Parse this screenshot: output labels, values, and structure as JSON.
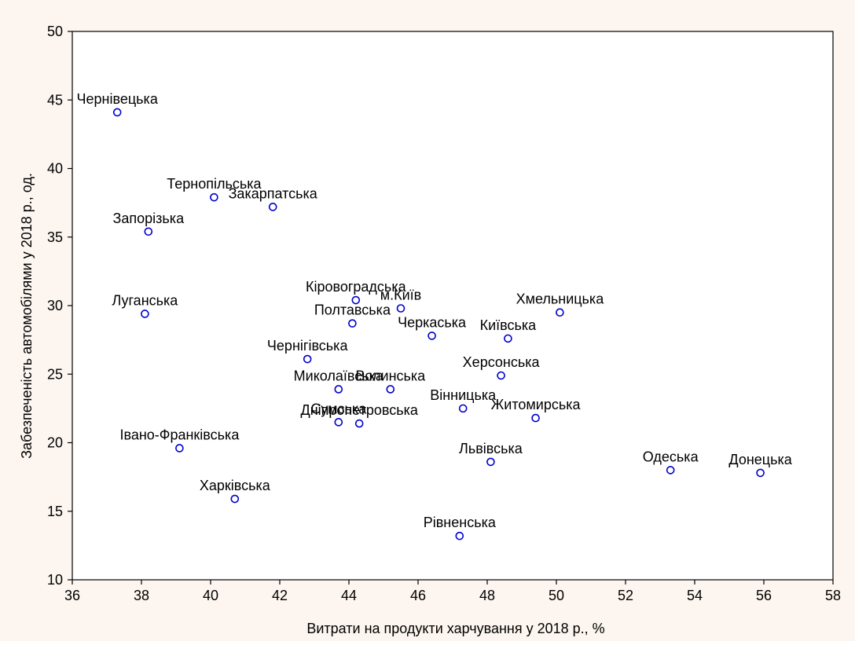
{
  "chart_data": {
    "type": "scatter",
    "title": "",
    "xlabel": "Витрати на продукти харчування у 2018 р., %",
    "ylabel": "Забезпеченість автомобілями у 2018 р., од.",
    "xlim": [
      36,
      58
    ],
    "ylim": [
      10,
      50
    ],
    "xticks": [
      36,
      38,
      40,
      42,
      44,
      46,
      48,
      50,
      52,
      54,
      56,
      58
    ],
    "yticks": [
      10,
      15,
      20,
      25,
      30,
      35,
      40,
      45,
      50
    ],
    "grid": false,
    "marker_color": "#0000cc",
    "points": [
      {
        "label": "Чернівецька",
        "x": 37.3,
        "y": 44.1
      },
      {
        "label": "Тернопільська",
        "x": 40.1,
        "y": 37.9
      },
      {
        "label": "Закарпатська",
        "x": 41.8,
        "y": 37.2
      },
      {
        "label": "Запорізька",
        "x": 38.2,
        "y": 35.4
      },
      {
        "label": "Луганська",
        "x": 38.1,
        "y": 29.4
      },
      {
        "label": "Кіровоградська",
        "x": 44.2,
        "y": 30.4
      },
      {
        "label": "м.Київ",
        "x": 45.5,
        "y": 29.8
      },
      {
        "label": "Полтавська",
        "x": 44.1,
        "y": 28.7
      },
      {
        "label": "Хмельницька",
        "x": 50.1,
        "y": 29.5
      },
      {
        "label": "Черкаська",
        "x": 46.4,
        "y": 27.8
      },
      {
        "label": "Київська",
        "x": 48.6,
        "y": 27.6
      },
      {
        "label": "Чернігівська",
        "x": 42.8,
        "y": 26.1
      },
      {
        "label": "Херсонська",
        "x": 48.4,
        "y": 24.9
      },
      {
        "label": "Миколаївська",
        "x": 43.7,
        "y": 23.9
      },
      {
        "label": "Волинська",
        "x": 45.2,
        "y": 23.9
      },
      {
        "label": "Вінницька",
        "x": 47.3,
        "y": 22.5
      },
      {
        "label": "Житомирська",
        "x": 49.4,
        "y": 21.8
      },
      {
        "label": "Сумська",
        "x": 43.7,
        "y": 21.5
      },
      {
        "label": "Дніпропетровська",
        "x": 44.3,
        "y": 21.4
      },
      {
        "label": "Івано-Франківська",
        "x": 39.1,
        "y": 19.6
      },
      {
        "label": "Львівська",
        "x": 48.1,
        "y": 18.6
      },
      {
        "label": "Одеська",
        "x": 53.3,
        "y": 18.0
      },
      {
        "label": "Донецька",
        "x": 55.9,
        "y": 17.8
      },
      {
        "label": "Харківська",
        "x": 40.7,
        "y": 15.9
      },
      {
        "label": "Рівненська",
        "x": 47.2,
        "y": 13.2
      }
    ]
  }
}
